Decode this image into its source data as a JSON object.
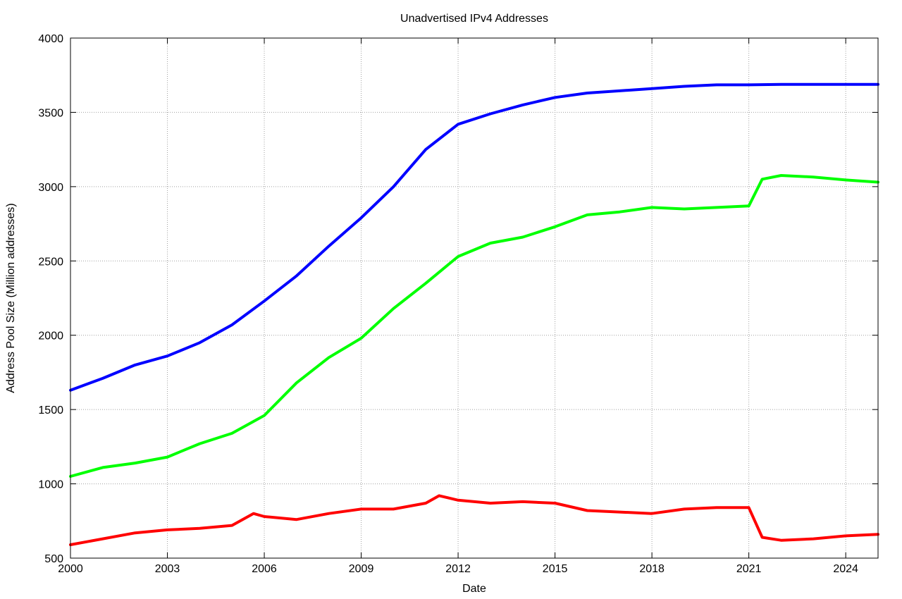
{
  "chart_data": {
    "type": "line",
    "title": "Unadvertised IPv4 Addresses",
    "xlabel": "Date",
    "ylabel": "Address Pool Size (Million addresses)",
    "xlim": [
      "2000-01-01",
      "2025-01-01"
    ],
    "ylim": [
      500,
      4000
    ],
    "x_ticks": [
      "2000",
      "2003",
      "2006",
      "2009",
      "2012",
      "2015",
      "2018",
      "2021",
      "2024"
    ],
    "y_ticks": [
      "500",
      "1000",
      "1500",
      "2000",
      "2500",
      "3000",
      "3500",
      "4000"
    ],
    "grid": true,
    "legend": "none",
    "series": [
      {
        "color": "#0000ff",
        "x": [
          "2000-01-01",
          "2001-01-01",
          "2002-01-01",
          "2003-01-01",
          "2004-01-01",
          "2005-01-01",
          "2006-01-01",
          "2007-01-01",
          "2008-01-01",
          "2009-01-01",
          "2010-01-01",
          "2011-01-01",
          "2012-01-01",
          "2013-01-01",
          "2014-01-01",
          "2015-01-01",
          "2016-01-01",
          "2017-01-01",
          "2018-01-01",
          "2019-01-01",
          "2020-01-01",
          "2021-01-01",
          "2022-01-01",
          "2023-01-01",
          "2024-01-01",
          "2025-01-01"
        ],
        "values": [
          1630,
          1710,
          1800,
          1860,
          1950,
          2070,
          2230,
          2400,
          2600,
          2790,
          3000,
          3250,
          3420,
          3490,
          3550,
          3600,
          3630,
          3645,
          3660,
          3675,
          3685,
          3685,
          3688,
          3688,
          3688,
          3688
        ]
      },
      {
        "color": "#00ff00",
        "x": [
          "2000-01-01",
          "2001-01-01",
          "2002-01-01",
          "2003-01-01",
          "2004-01-01",
          "2005-01-01",
          "2006-01-01",
          "2007-01-01",
          "2008-01-01",
          "2009-01-01",
          "2010-01-01",
          "2011-01-01",
          "2012-01-01",
          "2013-01-01",
          "2014-01-01",
          "2015-01-01",
          "2016-01-01",
          "2017-01-01",
          "2018-01-01",
          "2019-01-01",
          "2020-01-01",
          "2021-01-01",
          "2021-06-01",
          "2022-01-01",
          "2023-01-01",
          "2024-01-01",
          "2025-01-01"
        ],
        "values": [
          1050,
          1110,
          1140,
          1180,
          1270,
          1340,
          1460,
          1680,
          1850,
          1980,
          2180,
          2350,
          2530,
          2620,
          2660,
          2730,
          2810,
          2830,
          2860,
          2850,
          2860,
          2870,
          3050,
          3075,
          3065,
          3045,
          3030
        ]
      },
      {
        "color": "#ff0000",
        "x": [
          "2000-01-01",
          "2001-01-01",
          "2002-01-01",
          "2003-01-01",
          "2004-01-01",
          "2005-01-01",
          "2005-09-01",
          "2006-01-01",
          "2007-01-01",
          "2008-01-01",
          "2009-01-01",
          "2010-01-01",
          "2011-01-01",
          "2011-06-01",
          "2012-01-01",
          "2013-01-01",
          "2014-01-01",
          "2015-01-01",
          "2016-01-01",
          "2017-01-01",
          "2018-01-01",
          "2019-01-01",
          "2020-01-01",
          "2021-01-01",
          "2021-06-01",
          "2022-01-01",
          "2023-01-01",
          "2024-01-01",
          "2025-01-01"
        ],
        "values": [
          590,
          630,
          670,
          690,
          700,
          720,
          800,
          780,
          760,
          800,
          830,
          830,
          870,
          920,
          890,
          870,
          880,
          870,
          820,
          810,
          800,
          830,
          840,
          840,
          640,
          620,
          630,
          650,
          660
        ]
      }
    ]
  }
}
